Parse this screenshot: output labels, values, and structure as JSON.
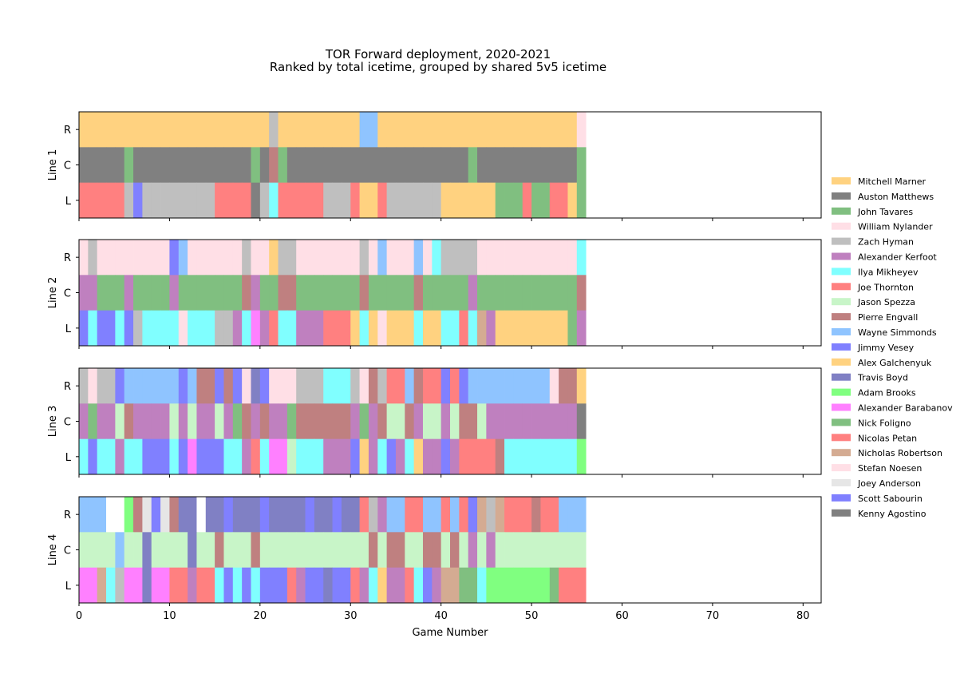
{
  "chart_data": {
    "type": "heatmap",
    "title": "TOR Forward deployment, 2020-2021",
    "subtitle": "Ranked by total icetime, grouped by shared 5v5 icetime",
    "xlabel": "Game Number",
    "xlim": [
      0,
      82
    ],
    "xticks": [
      0,
      10,
      20,
      30,
      40,
      50,
      60,
      70,
      80
    ],
    "position_labels": [
      "R",
      "C",
      "L"
    ],
    "legend_position": "right",
    "players": [
      {
        "name": "Mitchell Marner",
        "color": "#ffd280"
      },
      {
        "name": "Auston Matthews",
        "color": "#808080"
      },
      {
        "name": "John Tavares",
        "color": "#80bf80"
      },
      {
        "name": "William Nylander",
        "color": "#ffdfe6"
      },
      {
        "name": "Zach Hyman",
        "color": "#bfbfbf"
      },
      {
        "name": "Alexander Kerfoot",
        "color": "#bf80bf"
      },
      {
        "name": "Ilya Mikheyev",
        "color": "#80ffff"
      },
      {
        "name": "Joe Thornton",
        "color": "#ff8080"
      },
      {
        "name": "Jason Spezza",
        "color": "#c8f5c8"
      },
      {
        "name": "Pierre Engvall",
        "color": "#bf8080"
      },
      {
        "name": "Wayne Simmonds",
        "color": "#8fc4ff"
      },
      {
        "name": "Jimmy Vesey",
        "color": "#8080ff"
      },
      {
        "name": "Alex Galchenyuk",
        "color": "#ffd280"
      },
      {
        "name": "Travis Boyd",
        "color": "#8080c4"
      },
      {
        "name": "Adam Brooks",
        "color": "#80ff80"
      },
      {
        "name": "Alexander Barabanov",
        "color": "#ff80ff"
      },
      {
        "name": "Nick Foligno",
        "color": "#80bf80"
      },
      {
        "name": "Nicolas Petan",
        "color": "#ff8080"
      },
      {
        "name": "Nicholas Robertson",
        "color": "#d4ab92"
      },
      {
        "name": "Stefan Noesen",
        "color": "#ffdfe6"
      },
      {
        "name": "Joey Anderson",
        "color": "#e6e6e6"
      },
      {
        "name": "Scott Sabourin",
        "color": "#8080ff"
      },
      {
        "name": "Kenny Agostino",
        "color": "#808080"
      }
    ],
    "lines": [
      {
        "label": "Line 1",
        "rows": {
          "R": [
            "MM",
            "MM",
            "MM",
            "MM",
            "MM",
            "MM",
            "MM",
            "MM",
            "MM",
            "MM",
            "MM",
            "MM",
            "MM",
            "MM",
            "MM",
            "MM",
            "MM",
            "MM",
            "MM",
            "MM",
            "MM",
            "ZH",
            "MM",
            "MM",
            "MM",
            "MM",
            "MM",
            "MM",
            "MM",
            "MM",
            "MM",
            "WS",
            "WS",
            "MM",
            "MM",
            "MM",
            "MM",
            "MM",
            "MM",
            "MM",
            "MM",
            "MM",
            "MM",
            "MM",
            "MM",
            "MM",
            "MM",
            "MM",
            "MM",
            "MM",
            "MM",
            "MM",
            "MM",
            "MM",
            "MM",
            "WN"
          ],
          "C": [
            "AM",
            "AM",
            "AM",
            "AM",
            "AM",
            "JT",
            "AM",
            "AM",
            "AM",
            "AM",
            "AM",
            "AM",
            "AM",
            "AM",
            "AM",
            "AM",
            "AM",
            "AM",
            "AM",
            "JT",
            "AM",
            "PE",
            "JT",
            "AM",
            "AM",
            "AM",
            "AM",
            "AM",
            "AM",
            "AM",
            "AM",
            "AM",
            "AM",
            "AM",
            "AM",
            "AM",
            "AM",
            "AM",
            "AM",
            "AM",
            "AM",
            "AM",
            "AM",
            "JT",
            "AM",
            "AM",
            "AM",
            "AM",
            "AM",
            "AM",
            "AM",
            "AM",
            "AM",
            "AM",
            "AM",
            "JT"
          ],
          "L": [
            "JTh",
            "JTh",
            "JTh",
            "JTh",
            "JTh",
            "ZH",
            "JV",
            "ZH",
            "ZH",
            "ZH",
            "ZH",
            "ZH",
            "ZH",
            "ZH",
            "ZH",
            "JTh",
            "JTh",
            "JTh",
            "JTh",
            "AM",
            "ZH",
            "IM",
            "JTh",
            "JTh",
            "JTh",
            "JTh",
            "JTh",
            "ZH",
            "ZH",
            "ZH",
            "JTh",
            "MM",
            "MM",
            "JTh",
            "ZH",
            "ZH",
            "ZH",
            "ZH",
            "ZH",
            "ZH",
            "MM",
            "MM",
            "MM",
            "MM",
            "MM",
            "MM",
            "JT",
            "JT",
            "JT",
            "JTh",
            "JT",
            "JT",
            "JTh",
            "JTh",
            "MM",
            "JT"
          ]
        }
      },
      {
        "label": "Line 2",
        "rows": {
          "R": [
            "WN",
            "ZH",
            "WN",
            "WN",
            "WN",
            "WN",
            "WN",
            "WN",
            "WN",
            "WN",
            "JV",
            "WS",
            "WN",
            "WN",
            "WN",
            "WN",
            "WN",
            "WN",
            "ZH",
            "WN",
            "WN",
            "MM",
            "ZH",
            "ZH",
            "WN",
            "WN",
            "WN",
            "WN",
            "WN",
            "WN",
            "WN",
            "ZH",
            "WN",
            "WS",
            "WN",
            "WN",
            "WN",
            "WS",
            "WN",
            "IM",
            "ZH",
            "ZH",
            "ZH",
            "ZH",
            "WN",
            "WN",
            "WN",
            "WN",
            "WN",
            "WN",
            "WN",
            "WN",
            "WN",
            "WN",
            "WN",
            "IM"
          ],
          "C": [
            "AK",
            "AK",
            "JT",
            "JT",
            "JT",
            "AK",
            "JT",
            "JT",
            "JT",
            "JT",
            "AK",
            "JT",
            "JT",
            "JT",
            "JT",
            "JT",
            "JT",
            "JT",
            "PE",
            "AK",
            "JT",
            "JT",
            "PE",
            "PE",
            "JT",
            "JT",
            "JT",
            "JT",
            "JT",
            "JT",
            "JT",
            "PE",
            "JT",
            "JT",
            "JT",
            "JT",
            "JT",
            "PE",
            "JT",
            "JT",
            "JT",
            "JT",
            "JT",
            "AK",
            "JT",
            "JT",
            "JT",
            "JT",
            "JT",
            "JT",
            "JT",
            "JT",
            "JT",
            "JT",
            "JT",
            "PE"
          ],
          "L": [
            "JV",
            "IM",
            "JV",
            "JV",
            "IM",
            "JV",
            "ZH",
            "IM",
            "IM",
            "IM",
            "IM",
            "WN",
            "IM",
            "IM",
            "IM",
            "ZH",
            "ZH",
            "AK",
            "IM",
            "AB",
            "AK",
            "JTh",
            "IM",
            "IM",
            "AK",
            "AK",
            "AK",
            "JTh",
            "JTh",
            "JTh",
            "MM",
            "IM",
            "MM",
            "WN",
            "MM",
            "MM",
            "MM",
            "IM",
            "MM",
            "MM",
            "IM",
            "IM",
            "JTh",
            "IM",
            "NR",
            "AK",
            "MM",
            "MM",
            "MM",
            "MM",
            "MM",
            "MM",
            "MM",
            "MM",
            "JT",
            "AK"
          ]
        }
      },
      {
        "label": "Line 3",
        "rows": {
          "R": [
            "ZH",
            "WN",
            "ZH",
            "ZH",
            "JV",
            "WS",
            "WS",
            "WS",
            "WS",
            "WS",
            "WS",
            "JV",
            "WS",
            "PE",
            "PE",
            "JV",
            "PE",
            "JV",
            "WN",
            "TB",
            "JV",
            "WN",
            "WN",
            "WN",
            "ZH",
            "ZH",
            "ZH",
            "IM",
            "IM",
            "IM",
            "ZH",
            "WN",
            "PE",
            "ZH",
            "JTh",
            "JTh",
            "WS",
            "PE",
            "JTh",
            "JTh",
            "JV",
            "JTh",
            "JV",
            "WS",
            "WS",
            "WS",
            "WS",
            "WS",
            "WS",
            "WS",
            "WS",
            "WS",
            "WN",
            "PE",
            "PE",
            "MM"
          ],
          "C": [
            "AK",
            "JT",
            "AK",
            "AK",
            "JS",
            "PE",
            "AK",
            "AK",
            "AK",
            "AK",
            "JS",
            "AK",
            "JS",
            "AK",
            "AK",
            "JS",
            "AK",
            "JT",
            "PE",
            "AK",
            "PE",
            "AK",
            "AK",
            "JT",
            "PE",
            "PE",
            "PE",
            "PE",
            "PE",
            "PE",
            "AK",
            "JT",
            "AK",
            "PE",
            "JS",
            "JS",
            "PE",
            "AK",
            "JS",
            "JS",
            "AK",
            "JS",
            "PE",
            "PE",
            "JS",
            "AK",
            "AK",
            "AK",
            "AK",
            "AK",
            "AK",
            "AK",
            "AK",
            "AK",
            "AK",
            "AM"
          ],
          "L": [
            "IM",
            "JV",
            "IM",
            "IM",
            "AK",
            "IM",
            "IM",
            "JV",
            "JV",
            "JV",
            "IM",
            "JV",
            "AB",
            "JV",
            "JV",
            "JV",
            "IM",
            "IM",
            "AK",
            "JTh",
            "IM",
            "AB",
            "AB",
            "JS",
            "IM",
            "IM",
            "IM",
            "AK",
            "AK",
            "AK",
            "JV",
            "MM",
            "AK",
            "IM",
            "JV",
            "AK",
            "IM",
            "MM",
            "AK",
            "AK",
            "JV",
            "AK",
            "JTh",
            "JTh",
            "JTh",
            "JTh",
            "PE",
            "IM",
            "IM",
            "IM",
            "IM",
            "IM",
            "IM",
            "IM",
            "IM",
            "AdB"
          ]
        }
      },
      {
        "label": "Line 4",
        "rows": {
          "R": [
            "WS",
            "WS",
            "WS",
            "BL",
            "BL",
            "AdB",
            "PE",
            "JA",
            "JV",
            "JA",
            "PE",
            "TB",
            "TB",
            "BL",
            "TB",
            "TB",
            "JV",
            "TB",
            "TB",
            "TB",
            "JV",
            "TB",
            "TB",
            "TB",
            "TB",
            "JV",
            "TB",
            "TB",
            "JV",
            "TB",
            "TB",
            "JTh",
            "ZH",
            "AK",
            "WS",
            "WS",
            "JTh",
            "JTh",
            "WS",
            "WS",
            "JTh",
            "WS",
            "JTh",
            "JV",
            "NR",
            "ZH",
            "NR",
            "JTh",
            "JTh",
            "JTh",
            "PE",
            "JTh",
            "JTh",
            "WS",
            "WS",
            "WS"
          ],
          "C": [
            "JS",
            "JS",
            "JS",
            "JS",
            "WS",
            "JS",
            "JS",
            "TB",
            "JS",
            "JS",
            "JS",
            "JS",
            "TB",
            "JS",
            "JS",
            "PE",
            "JS",
            "JS",
            "JS",
            "PE",
            "JS",
            "JS",
            "JS",
            "JS",
            "JS",
            "JS",
            "JS",
            "JS",
            "JS",
            "JS",
            "JS",
            "JS",
            "PE",
            "JS",
            "PE",
            "PE",
            "JS",
            "JS",
            "PE",
            "PE",
            "JS",
            "PE",
            "JS",
            "AK",
            "JS",
            "AK",
            "JS",
            "JS",
            "JS",
            "JS",
            "JS",
            "JS",
            "JS",
            "JS",
            "JS",
            "JS"
          ],
          "L": [
            "AB",
            "AB",
            "NR",
            "IM",
            "ZH",
            "AB",
            "AB",
            "TB",
            "AB",
            "AB",
            "JTh",
            "JTh",
            "AK",
            "JTh",
            "JTh",
            "IM",
            "JV",
            "IM",
            "JV",
            "IM",
            "JV",
            "JV",
            "JV",
            "JTh",
            "AK",
            "JV",
            "JV",
            "TB",
            "JV",
            "JV",
            "JTh",
            "AK",
            "IM",
            "MM",
            "AK",
            "AK",
            "JTh",
            "IM",
            "JV",
            "AK",
            "NR",
            "NR",
            "JT",
            "JT",
            "IM",
            "AdB",
            "AdB",
            "AdB",
            "AdB",
            "AdB",
            "AdB",
            "AdB",
            "JT",
            "JTh",
            "JTh",
            "JTh"
          ]
        }
      }
    ]
  },
  "codes": {
    "MM": "Mitchell Marner",
    "AM": "Auston Matthews",
    "JT": "John Tavares",
    "WN": "William Nylander",
    "ZH": "Zach Hyman",
    "AK": "Alexander Kerfoot",
    "IM": "Ilya Mikheyev",
    "JTh": "Joe Thornton",
    "JS": "Jason Spezza",
    "PE": "Pierre Engvall",
    "WS": "Wayne Simmonds",
    "JV": "Jimmy Vesey",
    "AG": "Alex Galchenyuk",
    "TB": "Travis Boyd",
    "AdB": "Adam Brooks",
    "AB": "Alexander Barabanov",
    "NF": "Nick Foligno",
    "NP": "Nicolas Petan",
    "NR": "Nicholas Robertson",
    "SN": "Stefan Noesen",
    "JA": "Joey Anderson",
    "SS": "Scott Sabourin",
    "KA": "Kenny Agostino",
    "BL": ""
  }
}
